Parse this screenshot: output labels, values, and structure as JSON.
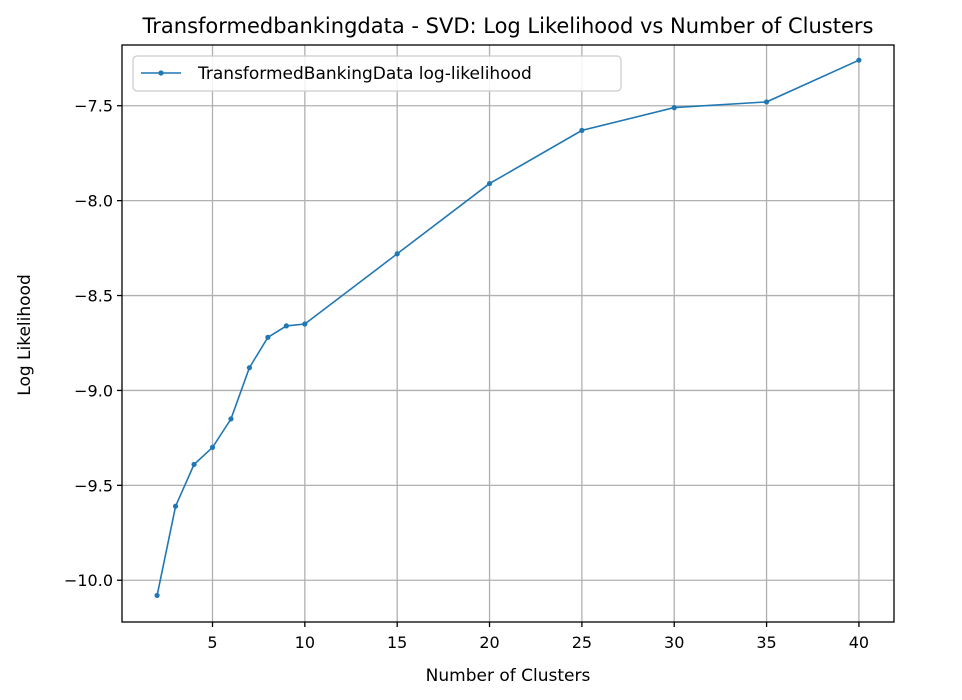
{
  "chart_data": {
    "type": "line",
    "title": "Transformedbankingdata - SVD: Log Likelihood vs Number of Clusters",
    "xlabel": "Number of Clusters",
    "ylabel": "Log Likelihood",
    "xlim": [
      0.1,
      41.9
    ],
    "ylim": [
      -10.22,
      -7.18
    ],
    "xticks": [
      5,
      10,
      15,
      20,
      25,
      30,
      35,
      40
    ],
    "yticks": [
      -10.0,
      -9.5,
      -9.0,
      -8.5,
      -8.0,
      -7.5
    ],
    "xtick_labels": [
      "5",
      "10",
      "15",
      "20",
      "25",
      "30",
      "35",
      "40"
    ],
    "ytick_labels": [
      "−10.0",
      "−9.5",
      "−9.0",
      "−8.5",
      "−8.0",
      "−7.5"
    ],
    "grid": true,
    "legend_position": "upper-left",
    "series": [
      {
        "name": "TransformedBankingData log-likelihood",
        "color": "#1f77b4",
        "marker": "dot",
        "x": [
          2,
          3,
          4,
          5,
          6,
          7,
          8,
          9,
          10,
          15,
          20,
          25,
          30,
          35,
          40
        ],
        "y": [
          -10.08,
          -9.61,
          -9.39,
          -9.3,
          -9.15,
          -8.88,
          -8.72,
          -8.66,
          -8.65,
          -8.28,
          -7.91,
          -7.63,
          -7.51,
          -7.48,
          -7.26
        ]
      }
    ]
  }
}
